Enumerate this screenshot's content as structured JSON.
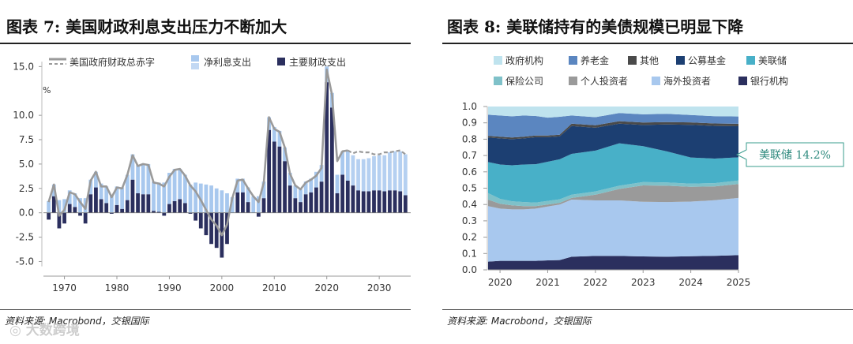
{
  "left": {
    "title": "图表 7: 美国财政利息支出压力不断加大",
    "source": "资料来源: Macrobond，交银国际",
    "chart_data": {
      "type": "bar",
      "unit_label": "%",
      "legend": [
        "美国政府财政总赤字",
        "净利息支出",
        "主要财政支出"
      ],
      "colors": {
        "deficit": "#9a9a9a",
        "interest": "#a8c8ee",
        "primary": "#2b2f5e"
      },
      "ylim": [
        -6.5,
        16
      ],
      "yticks": [
        "15.0",
        "10.0",
        "7.5",
        "5.0",
        "2.5",
        "0.0",
        "-2.5",
        "-5.0"
      ],
      "ytick_values": [
        15.0,
        10.0,
        7.5,
        5.0,
        2.5,
        0.0,
        -2.5,
        -5.0
      ],
      "xlim": [
        1966,
        2036
      ],
      "xticks": [
        "1970",
        "1980",
        "1990",
        "2000",
        "2010",
        "2020",
        "2030"
      ],
      "xtick_values": [
        1970,
        1980,
        1990,
        2000,
        2010,
        2020,
        2030
      ],
      "years": [
        1967,
        1968,
        1969,
        1970,
        1971,
        1972,
        1973,
        1974,
        1975,
        1976,
        1977,
        1978,
        1979,
        1980,
        1981,
        1982,
        1983,
        1984,
        1985,
        1986,
        1987,
        1988,
        1989,
        1990,
        1991,
        1992,
        1993,
        1994,
        1995,
        1996,
        1997,
        1998,
        1999,
        2000,
        2001,
        2002,
        2003,
        2004,
        2005,
        2006,
        2007,
        2008,
        2009,
        2010,
        2011,
        2012,
        2013,
        2014,
        2015,
        2016,
        2017,
        2018,
        2019,
        2020,
        2021,
        2022,
        2023,
        2024,
        2025,
        2026,
        2027,
        2028,
        2029,
        2030,
        2031,
        2032,
        2033,
        2034,
        2035
      ],
      "interest": [
        1.2,
        1.2,
        1.3,
        1.4,
        1.4,
        1.4,
        1.5,
        1.5,
        1.5,
        1.6,
        1.6,
        1.7,
        1.8,
        1.9,
        2.2,
        2.6,
        2.6,
        2.9,
        3.1,
        3.1,
        3.0,
        3.0,
        3.1,
        3.2,
        3.3,
        3.1,
        2.9,
        2.9,
        3.1,
        3.0,
        2.9,
        2.8,
        2.5,
        2.3,
        2.0,
        1.6,
        1.4,
        1.4,
        1.5,
        1.7,
        1.7,
        1.7,
        1.3,
        1.5,
        1.6,
        1.4,
        1.3,
        1.3,
        1.3,
        1.3,
        1.4,
        1.6,
        1.7,
        1.6,
        1.5,
        1.9,
        2.4,
        3.1,
        3.1,
        3.2,
        3.3,
        3.4,
        3.5,
        3.6,
        3.7,
        3.9,
        4.0,
        4.1,
        4.2
      ],
      "primary": [
        -0.7,
        1.7,
        -1.6,
        -1.1,
        0.9,
        0.6,
        -0.3,
        -1.1,
        1.9,
        2.6,
        1.4,
        1.0,
        -0.1,
        0.8,
        0.4,
        1.3,
        3.4,
        2.0,
        1.9,
        1.9,
        0.2,
        0.1,
        -0.3,
        0.9,
        1.2,
        1.4,
        1.0,
        -0.1,
        -0.8,
        -1.6,
        -2.3,
        -3.2,
        -3.6,
        -4.6,
        -3.2,
        0.0,
        2.1,
        2.1,
        1.1,
        0.0,
        -0.4,
        1.5,
        8.5,
        7.3,
        6.8,
        5.3,
        2.8,
        1.5,
        1.1,
        1.9,
        2.1,
        2.6,
        3.2,
        13.4,
        10.8,
        2.0,
        3.9,
        3.3,
        2.8,
        2.3,
        2.2,
        2.2,
        2.3,
        2.3,
        2.2,
        2.3,
        2.3,
        2.2,
        1.8
      ],
      "deficit": [
        1.1,
        2.9,
        -0.3,
        0.3,
        2.1,
        1.9,
        1.1,
        0.4,
        3.3,
        4.2,
        2.7,
        2.7,
        1.6,
        2.6,
        2.5,
        3.9,
        5.9,
        4.8,
        5.0,
        4.9,
        3.1,
        3.0,
        2.7,
        3.7,
        4.4,
        4.5,
        3.8,
        2.8,
        2.2,
        1.3,
        0.3,
        -0.7,
        -1.3,
        -2.3,
        -1.2,
        1.5,
        3.3,
        3.4,
        2.5,
        1.7,
        1.1,
        3.1,
        9.8,
        8.6,
        8.3,
        6.7,
        4.0,
        2.8,
        2.4,
        3.1,
        3.4,
        3.8,
        4.6,
        14.7,
        12.1,
        5.3,
        6.3,
        6.4,
        6.1,
        6.3,
        6.2,
        6.2,
        6.0,
        6.0,
        6.2,
        6.2,
        6.3,
        6.4,
        6.0
      ]
    }
  },
  "right": {
    "title": "图表 8: 美联储持有的美债规模已明显下降",
    "source": "资料来源: Macrobond，交银国际",
    "callout": "美联储 14.2%",
    "chart_data": {
      "type": "area",
      "stacked": true,
      "ylim": [
        0.0,
        1.0
      ],
      "yticks": [
        "1.0",
        "0.9",
        "0.8",
        "0.7",
        "0.6",
        "0.5",
        "0.4",
        "0.3",
        "0.2",
        "0.1",
        "0.0"
      ],
      "ytick_values": [
        1.0,
        0.9,
        0.8,
        0.7,
        0.6,
        0.5,
        0.4,
        0.3,
        0.2,
        0.1,
        0.0
      ],
      "xlim": [
        2019.75,
        2025.0
      ],
      "xticks": [
        "2020",
        "2021",
        "2022",
        "2023",
        "2024",
        "2025"
      ],
      "xtick_values": [
        2020,
        2021,
        2022,
        2023,
        2024,
        2025
      ],
      "x": [
        2019.75,
        2020.0,
        2020.25,
        2020.5,
        2020.75,
        2021.0,
        2021.25,
        2021.5,
        2022.0,
        2022.5,
        2023.0,
        2023.5,
        2024.0,
        2024.5,
        2025.0
      ],
      "legend_order": [
        "政府机构",
        "养老金",
        "其他",
        "公募基金",
        "美联储",
        "保险公司",
        "个人投资者",
        "海外投资者",
        "银行机构"
      ],
      "series": [
        {
          "name": "银行机构",
          "color": "#2b2f5e",
          "values": [
            0.05,
            0.055,
            0.055,
            0.055,
            0.055,
            0.058,
            0.06,
            0.08,
            0.085,
            0.085,
            0.082,
            0.08,
            0.083,
            0.086,
            0.09
          ]
        },
        {
          "name": "海外投资者",
          "color": "#a8c8ee",
          "values": [
            0.34,
            0.32,
            0.315,
            0.315,
            0.32,
            0.33,
            0.34,
            0.35,
            0.34,
            0.34,
            0.335,
            0.335,
            0.335,
            0.34,
            0.35
          ]
        },
        {
          "name": "个人投资者",
          "color": "#9a9a9a",
          "values": [
            0.04,
            0.03,
            0.025,
            0.02,
            0.015,
            0.012,
            0.01,
            0.01,
            0.035,
            0.07,
            0.1,
            0.1,
            0.09,
            0.085,
            0.085
          ]
        },
        {
          "name": "保险公司",
          "color": "#7fc1c9",
          "values": [
            0.04,
            0.03,
            0.025,
            0.025,
            0.022,
            0.022,
            0.022,
            0.02,
            0.02,
            0.02,
            0.02,
            0.02,
            0.02,
            0.02,
            0.022
          ]
        },
        {
          "name": "美联储",
          "color": "#48b0c8",
          "values": [
            0.19,
            0.21,
            0.22,
            0.23,
            0.235,
            0.24,
            0.245,
            0.25,
            0.25,
            0.26,
            0.22,
            0.19,
            0.16,
            0.15,
            0.142
          ]
        },
        {
          "name": "公募基金",
          "color": "#1c3f72",
          "values": [
            0.15,
            0.16,
            0.16,
            0.16,
            0.165,
            0.15,
            0.14,
            0.17,
            0.14,
            0.12,
            0.13,
            0.165,
            0.2,
            0.2,
            0.19
          ]
        },
        {
          "name": "其他",
          "color": "#4a4a4a",
          "values": [
            0.01,
            0.01,
            0.01,
            0.01,
            0.01,
            0.01,
            0.01,
            0.015,
            0.015,
            0.015,
            0.015,
            0.015,
            0.015,
            0.015,
            0.015
          ]
        },
        {
          "name": "养老金",
          "color": "#5b86c0",
          "values": [
            0.13,
            0.13,
            0.13,
            0.13,
            0.12,
            0.11,
            0.11,
            0.05,
            0.05,
            0.05,
            0.05,
            0.05,
            0.045,
            0.045,
            0.045
          ]
        },
        {
          "name": "政府机构",
          "color": "#bfe3ee",
          "values": [
            0.05,
            0.055,
            0.06,
            0.055,
            0.058,
            0.068,
            0.063,
            0.055,
            0.065,
            0.04,
            0.048,
            0.045,
            0.052,
            0.059,
            0.061
          ]
        }
      ]
    }
  },
  "watermark": "◎ 大数跨境"
}
